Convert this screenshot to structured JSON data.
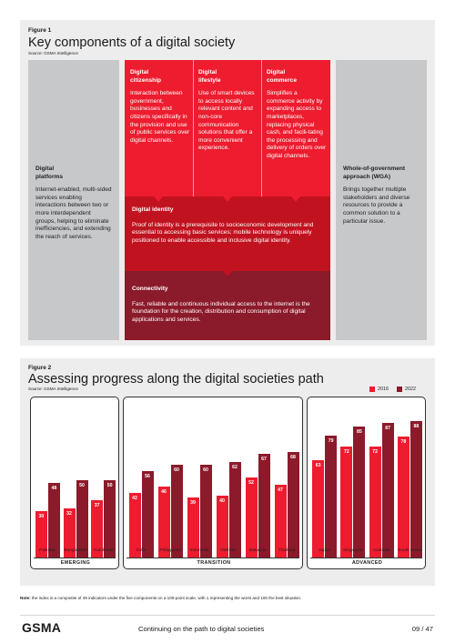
{
  "figure1": {
    "label": "Figure 1",
    "title": "Key components of a digital society",
    "source": "Source: GSMA Intelligence",
    "colors": {
      "gray": "#c7c8ca",
      "red": "#ed1c2e",
      "mid_red": "#c1121f",
      "dark_red": "#8b1a2a"
    },
    "left": {
      "heading": "Digital\nplatforms",
      "body": "Internet-enabled, multi-sided services enabling interactions between two or more interdependent groups, helping to eliminate inefficiencies, and extending the reach of services."
    },
    "right": {
      "heading": "Whole-of-government approach (WGA)",
      "body": "Brings together multiple stakeholders and diverse resources to provide a common solution to a particular issue."
    },
    "columns": [
      {
        "heading": "Digital\ncitizenship",
        "body": "Interaction between government, businesses and citizens specifically in the provision and use of public services over digital channels."
      },
      {
        "heading": "Digital\nlifestyle",
        "body": "Use of smart devices to access locally relevant content and non-core communication solutions that offer a more convenient experience."
      },
      {
        "heading": "Digital\ncommerce",
        "body": "Simplifies a commerce activity by expanding access to marketplaces, replacing physical cash, and facili-tating the processing and delivery of orders over digital channels."
      }
    ],
    "identity": {
      "heading": "Digital identity",
      "body": "Proof of identity is a prerequisite to socioeconomic development and essential to accessing basic services; mobile technology is uniquely positioned to enable accessible and inclusive digital identity."
    },
    "connectivity": {
      "heading": "Connectivity",
      "body": "Fast, reliable and continuous individual access to the internet is the foundation for the creation, distribution and consumption of digital applications and services."
    }
  },
  "figure2": {
    "label": "Figure 2",
    "title": "Assessing progress along the digital societies path",
    "source": "Source: GSMA Intelligence"
  },
  "chart_data": {
    "type": "bar",
    "categories": [
      "Pakistan",
      "Bangladesh",
      "Cambodia",
      "India",
      "Philippines",
      "Indonesia",
      "Vietnam",
      "Malaysia",
      "Thailand",
      "Japan",
      "Singapore",
      "Australia",
      "South Korea"
    ],
    "series": [
      {
        "name": "2016",
        "color": "#ed1c2e",
        "values": [
          30,
          32,
          37,
          42,
          46,
          39,
          40,
          52,
          47,
          63,
          72,
          72,
          78
        ]
      },
      {
        "name": "2022",
        "color": "#8b1a2a",
        "values": [
          48,
          50,
          50,
          56,
          60,
          60,
          62,
          67,
          68,
          79,
          85,
          87,
          88
        ]
      }
    ],
    "groups": [
      {
        "name": "EMERGING",
        "categories": [
          "Pakistan",
          "Bangladesh",
          "Cambodia"
        ]
      },
      {
        "name": "TRANSITION",
        "categories": [
          "India",
          "Philippines",
          "Indonesia",
          "Vietnam",
          "Malaysia",
          "Thailand"
        ]
      },
      {
        "name": "ADVANCED",
        "categories": [
          "Japan",
          "Singapore",
          "Australia",
          "South Korea"
        ]
      }
    ],
    "ylim": [
      0,
      100
    ],
    "legend_position": "top-right",
    "grid": false
  },
  "note": {
    "bold": "Note:",
    "text": " the index is a composite of 49 indicators under the five components on a 100-point scale, with 1 representing the worst and 100 the best situation."
  },
  "footer": {
    "logo": "GSMA",
    "title": "Continuing on the path to digital societies",
    "page": "09 / 47"
  }
}
